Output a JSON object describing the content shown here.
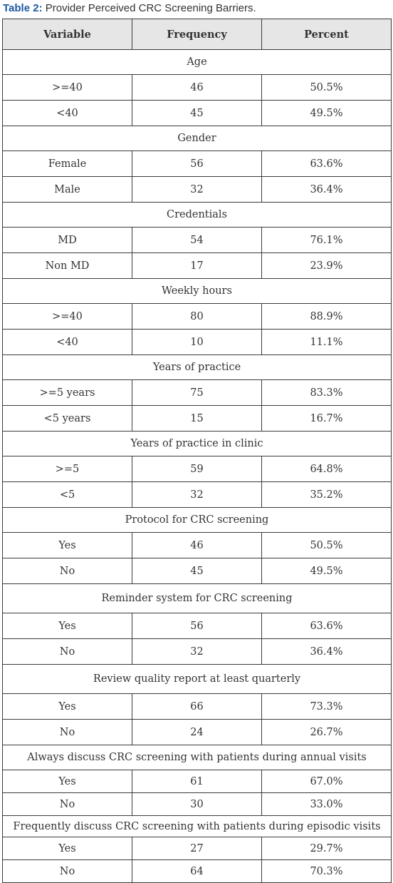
{
  "caption": {
    "label": "Table 2:",
    "text": " Provider Perceived CRC Screening Barriers."
  },
  "columns": [
    "Variable",
    "Frequency",
    "Percent"
  ],
  "sections": [
    {
      "title": "Age",
      "rows": [
        {
          "variable": ">=40",
          "frequency": "46",
          "percent": "50.5%"
        },
        {
          "variable": "<40",
          "frequency": "45",
          "percent": "49.5%"
        }
      ]
    },
    {
      "title": "Gender",
      "rows": [
        {
          "variable": "Female",
          "frequency": "56",
          "percent": "63.6%"
        },
        {
          "variable": "Male",
          "frequency": "32",
          "percent": "36.4%"
        }
      ]
    },
    {
      "title": "Credentials",
      "rows": [
        {
          "variable": "MD",
          "frequency": "54",
          "percent": "76.1%"
        },
        {
          "variable": "Non MD",
          "frequency": "17",
          "percent": "23.9%"
        }
      ]
    },
    {
      "title": "Weekly hours",
      "rows": [
        {
          "variable": ">=40",
          "frequency": "80",
          "percent": "88.9%"
        },
        {
          "variable": "<40",
          "frequency": "10",
          "percent": "11.1%"
        }
      ]
    },
    {
      "title": "Years of practice",
      "rows": [
        {
          "variable": ">=5 years",
          "frequency": "75",
          "percent": "83.3%"
        },
        {
          "variable": "<5 years",
          "frequency": "15",
          "percent": "16.7%"
        }
      ]
    },
    {
      "title": "Years of practice in clinic",
      "rows": [
        {
          "variable": ">=5",
          "frequency": "59",
          "percent": "64.8%"
        },
        {
          "variable": "<5",
          "frequency": "32",
          "percent": "35.2%"
        }
      ]
    },
    {
      "title": "Protocol for CRC screening",
      "rows": [
        {
          "variable": "Yes",
          "frequency": "46",
          "percent": "50.5%"
        },
        {
          "variable": "No",
          "frequency": "45",
          "percent": "49.5%"
        }
      ]
    },
    {
      "title": "Reminder system for CRC screening",
      "rows": [
        {
          "variable": "Yes",
          "frequency": "56",
          "percent": "63.6%"
        },
        {
          "variable": "No",
          "frequency": "32",
          "percent": "36.4%"
        }
      ]
    },
    {
      "title": "Review quality report at least quarterly",
      "rows": [
        {
          "variable": "Yes",
          "frequency": "66",
          "percent": "73.3%"
        },
        {
          "variable": "No",
          "frequency": "24",
          "percent": "26.7%"
        }
      ]
    },
    {
      "title": "Always discuss CRC screening with patients during annual visits",
      "rows": [
        {
          "variable": "Yes",
          "frequency": "61",
          "percent": "67.0%"
        },
        {
          "variable": "No",
          "frequency": "30",
          "percent": "33.0%"
        }
      ]
    },
    {
      "title": "Frequently discuss CRC screening with patients during episodic visits",
      "rows": [
        {
          "variable": "Yes",
          "frequency": "27",
          "percent": "29.7%"
        },
        {
          "variable": "No",
          "frequency": "64",
          "percent": "70.3%"
        }
      ]
    }
  ]
}
